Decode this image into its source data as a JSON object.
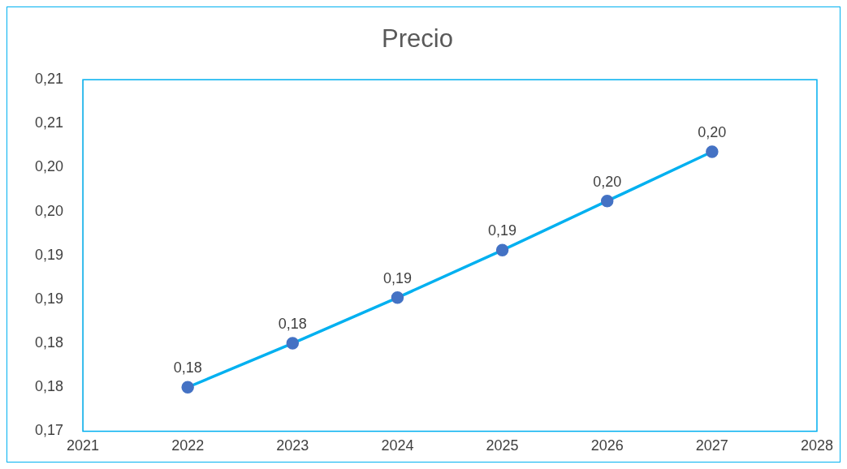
{
  "chart_data": {
    "type": "line",
    "title": "Precio",
    "x": [
      2022,
      2023,
      2024,
      2025,
      2026,
      2027
    ],
    "series": [
      {
        "color": "#00b0f0",
        "colors": [
          "#4472c4",
          "#4472c4",
          "#4472c4",
          "#4472c4",
          "#4472c4",
          "#4472c4"
        ],
        "values": [
          0.175,
          0.18,
          0.1852,
          0.1906,
          0.1962,
          0.2018
        ],
        "value_labels": [
          "0,18",
          "0,18",
          "0,19",
          "0,19",
          "0,20",
          "0,20"
        ]
      }
    ],
    "xlim": [
      2021,
      2028
    ],
    "xticks": [
      2021,
      2022,
      2023,
      2024,
      2025,
      2026,
      2027,
      2028
    ],
    "ylim": [
      0.17,
      0.21
    ],
    "yticks": [
      {
        "value": 0.17,
        "label": "0,17"
      },
      {
        "value": 0.175,
        "label": "0,18"
      },
      {
        "value": 0.18,
        "label": "0,18"
      },
      {
        "value": 0.185,
        "label": "0,19"
      },
      {
        "value": 0.19,
        "label": "0,19"
      },
      {
        "value": 0.195,
        "label": "0,20"
      },
      {
        "value": 0.2,
        "label": "0,20"
      },
      {
        "value": 0.205,
        "label": "0,21"
      },
      {
        "value": 0.21,
        "label": "0,21"
      }
    ],
    "grid": false,
    "legend": false,
    "marker": "circle",
    "line_style": "solid"
  }
}
